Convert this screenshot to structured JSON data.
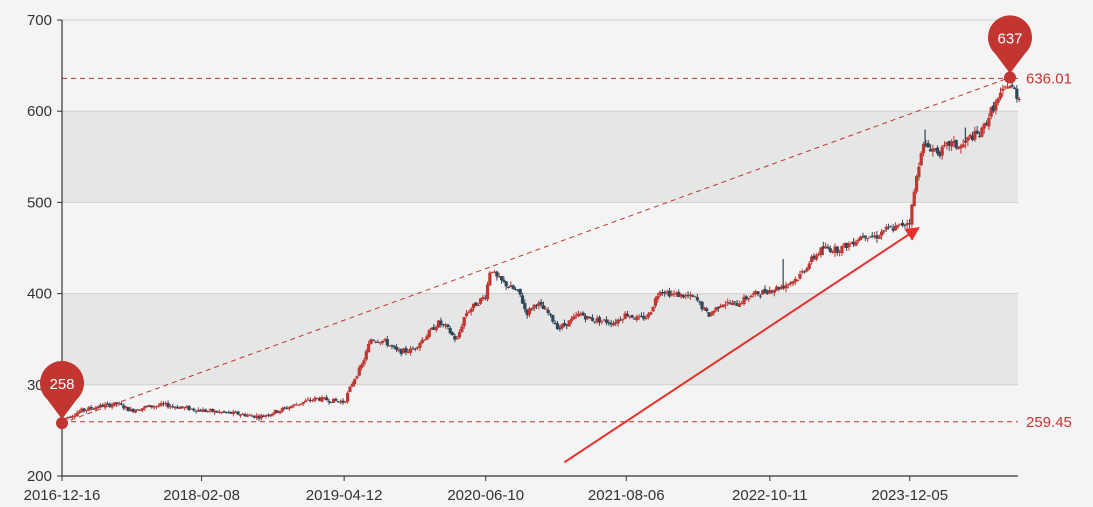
{
  "chart_data": {
    "type": "candlestick",
    "title": "",
    "xlabel": "",
    "ylabel": "",
    "ylim": [
      200,
      700
    ],
    "y_ticks": [
      200,
      300,
      400,
      500,
      600,
      700
    ],
    "x_tick_labels": [
      "2016-12-16",
      "2018-02-08",
      "2019-04-12",
      "2020-06-10",
      "2021-08-06",
      "2022-10-11",
      "2023-12-05"
    ],
    "x_range": [
      "2016-12-16",
      "2024-10-25"
    ],
    "grid": "horizontal banded",
    "series_colors": {
      "up": "#c23531",
      "down": "#314656"
    },
    "trend_points": [
      [
        "2016-12-16",
        262
      ],
      [
        "2017-02-15",
        272
      ],
      [
        "2017-04-15",
        277
      ],
      [
        "2017-06-01",
        279
      ],
      [
        "2017-07-10",
        272
      ],
      [
        "2017-09-01",
        276
      ],
      [
        "2017-10-20",
        278
      ],
      [
        "2017-12-10",
        275
      ],
      [
        "2018-02-08",
        272
      ],
      [
        "2018-04-01",
        270
      ],
      [
        "2018-06-01",
        268
      ],
      [
        "2018-08-01",
        265
      ],
      [
        "2018-10-01",
        272
      ],
      [
        "2018-12-01",
        280
      ],
      [
        "2019-01-20",
        285
      ],
      [
        "2019-03-01",
        283
      ],
      [
        "2019-04-12",
        281
      ],
      [
        "2019-05-10",
        305
      ],
      [
        "2019-06-05",
        322
      ],
      [
        "2019-07-01",
        350
      ],
      [
        "2019-08-10",
        348
      ],
      [
        "2019-09-20",
        336
      ],
      [
        "2019-11-01",
        338
      ],
      [
        "2019-12-10",
        352
      ],
      [
        "2020-01-20",
        368
      ],
      [
        "2020-02-15",
        362
      ],
      [
        "2020-03-15",
        348
      ],
      [
        "2020-04-10",
        378
      ],
      [
        "2020-05-10",
        388
      ],
      [
        "2020-06-10",
        398
      ],
      [
        "2020-06-25",
        430
      ],
      [
        "2020-07-10",
        418
      ],
      [
        "2020-08-10",
        410
      ],
      [
        "2020-09-20",
        400
      ],
      [
        "2020-10-10",
        378
      ],
      [
        "2020-11-10",
        390
      ],
      [
        "2020-12-15",
        378
      ],
      [
        "2021-01-15",
        362
      ],
      [
        "2021-02-20",
        370
      ],
      [
        "2021-03-20",
        378
      ],
      [
        "2021-04-20",
        372
      ],
      [
        "2021-06-01",
        370
      ],
      [
        "2021-07-01",
        368
      ],
      [
        "2021-08-06",
        378
      ],
      [
        "2021-09-10",
        372
      ],
      [
        "2021-10-10",
        375
      ],
      [
        "2021-11-15",
        405
      ],
      [
        "2021-12-15",
        400
      ],
      [
        "2022-01-20",
        398
      ],
      [
        "2022-03-01",
        395
      ],
      [
        "2022-04-10",
        376
      ],
      [
        "2022-05-20",
        390
      ],
      [
        "2022-07-01",
        388
      ],
      [
        "2022-08-15",
        398
      ],
      [
        "2022-10-11",
        404
      ],
      [
        "2022-11-20",
        408
      ],
      [
        "2023-01-05",
        418
      ],
      [
        "2023-02-15",
        438
      ],
      [
        "2023-03-20",
        450
      ],
      [
        "2023-05-01",
        448
      ],
      [
        "2023-06-10",
        455
      ],
      [
        "2023-07-20",
        465
      ],
      [
        "2023-08-25",
        462
      ],
      [
        "2023-09-20",
        470
      ],
      [
        "2023-10-25",
        472
      ],
      [
        "2023-12-05",
        480
      ],
      [
        "2023-12-20",
        515
      ],
      [
        "2024-01-10",
        562
      ],
      [
        "2024-02-05",
        560
      ],
      [
        "2024-03-05",
        555
      ],
      [
        "2024-04-05",
        565
      ],
      [
        "2024-05-05",
        560
      ],
      [
        "2024-06-05",
        572
      ],
      [
        "2024-07-05",
        575
      ],
      [
        "2024-08-05",
        600
      ],
      [
        "2024-09-05",
        618
      ],
      [
        "2024-09-25",
        630
      ],
      [
        "2024-10-15",
        622
      ],
      [
        "2024-10-25",
        615
      ]
    ],
    "spikes": [
      {
        "date": "2022-11-20",
        "high": 438
      },
      {
        "date": "2023-03-20",
        "high": 442
      },
      {
        "date": "2024-01-20",
        "high": 580
      },
      {
        "date": "2024-05-20",
        "high": 582
      },
      {
        "date": "2024-07-20",
        "high": 585
      }
    ],
    "markpoints": [
      {
        "date": "2016-12-16",
        "value": 258,
        "label": "258"
      },
      {
        "date": "2024-10-01",
        "value": 637,
        "label": "637"
      }
    ],
    "marklines": [
      {
        "value": 636.01,
        "label": "636.01"
      },
      {
        "value": 259.45,
        "label": "259.45"
      }
    ],
    "trendline": {
      "from": [
        "2016-12-16",
        258
      ],
      "to": [
        "2024-10-01",
        637
      ]
    },
    "annotation_arrow": {
      "from": [
        "2021-02-01",
        215
      ],
      "to": [
        "2024-01-01",
        472
      ],
      "color": "#e8302a"
    }
  }
}
